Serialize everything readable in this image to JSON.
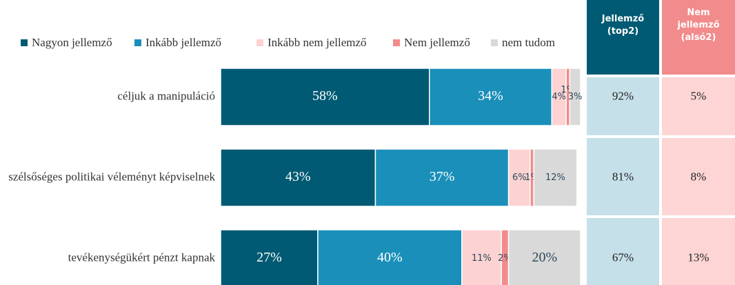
{
  "chart_data": {
    "type": "stacked-bar-horizontal",
    "categories": [
      "céljuk a manipuláció",
      "szélsőséges politikai véleményt képviselnek",
      "tevékenységükért pénzt kapnak"
    ],
    "series": [
      {
        "name": "Nagyon jellemző",
        "color": "#005a73",
        "values": [
          58,
          43,
          27
        ],
        "value_labels": [
          "58%",
          "43%",
          "27%"
        ]
      },
      {
        "name": "Inkább jellemző",
        "color": "#1a8fba",
        "values": [
          34,
          37,
          40
        ],
        "value_labels": [
          "34%",
          "37%",
          "40%"
        ]
      },
      {
        "name": "Inkább nem jellemző",
        "color": "#fcd2d2",
        "values": [
          4,
          6,
          11
        ],
        "value_labels": [
          "4%",
          "6%",
          "11%"
        ]
      },
      {
        "name": "Nem jellemző",
        "color": "#f28b8b",
        "values": [
          1,
          1,
          2
        ],
        "value_labels": [
          "1%",
          "1%",
          "2%"
        ]
      },
      {
        "name": "nem tudom",
        "color": "#d9d9d9",
        "values": [
          3,
          12,
          20
        ],
        "value_labels": [
          "3%",
          "12%",
          "20%"
        ]
      }
    ],
    "xlim": [
      0,
      100
    ],
    "table": {
      "headers": [
        "Jellemző (top2)",
        "Nem jellemző (alsó2)"
      ],
      "rows": [
        [
          "92%",
          "5%"
        ],
        [
          "81%",
          "8%"
        ],
        [
          "67%",
          "13%"
        ]
      ]
    }
  }
}
